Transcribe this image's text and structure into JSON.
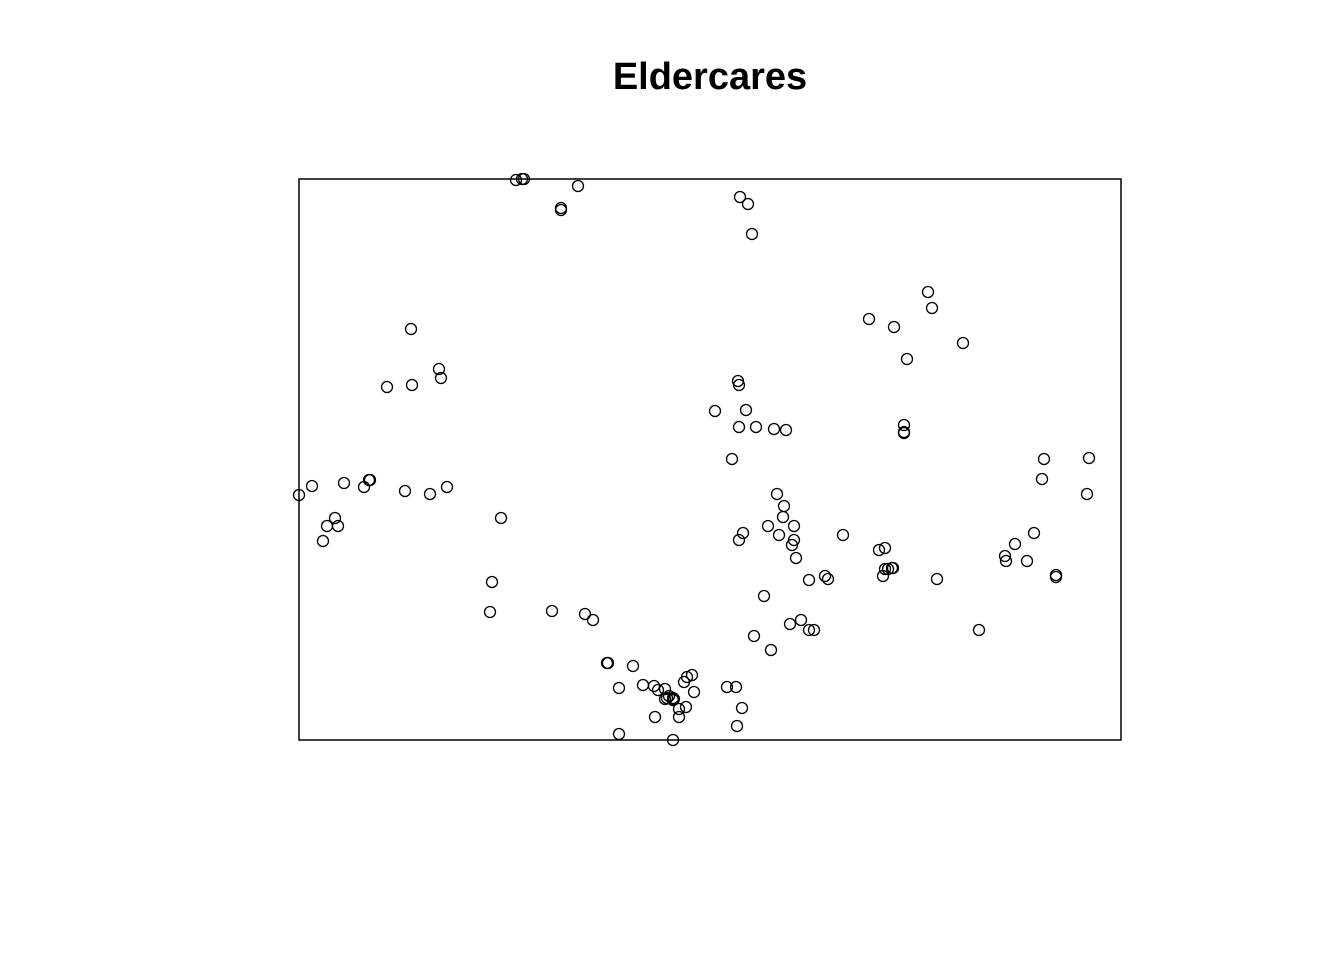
{
  "chart_data": {
    "type": "scatter",
    "title": "Eldercares",
    "xlabel": "",
    "ylabel": "",
    "xlim": [
      0,
      822
    ],
    "ylim": [
      0,
      561
    ],
    "axes_shown": false,
    "grid": false,
    "marker": "open-circle",
    "color": "#000000",
    "points": [
      [
        217,
        560
      ],
      [
        223,
        561
      ],
      [
        225,
        561
      ],
      [
        279,
        554
      ],
      [
        262,
        532
      ],
      [
        262,
        530
      ],
      [
        441,
        543
      ],
      [
        449,
        536
      ],
      [
        453,
        506
      ],
      [
        112,
        411
      ],
      [
        88,
        353
      ],
      [
        113,
        355
      ],
      [
        140,
        371
      ],
      [
        142,
        362
      ],
      [
        0,
        245
      ],
      [
        13,
        254
      ],
      [
        45,
        257
      ],
      [
        65,
        253
      ],
      [
        70,
        260
      ],
      [
        71,
        260
      ],
      [
        106,
        249
      ],
      [
        131,
        246
      ],
      [
        148,
        253
      ],
      [
        28,
        214
      ],
      [
        36,
        222
      ],
      [
        39,
        214
      ],
      [
        24,
        199
      ],
      [
        202,
        222
      ],
      [
        193,
        158
      ],
      [
        191,
        128
      ],
      [
        253,
        129
      ],
      [
        286,
        126
      ],
      [
        294,
        120
      ],
      [
        570,
        421
      ],
      [
        595,
        413
      ],
      [
        629,
        448
      ],
      [
        633,
        432
      ],
      [
        608,
        381
      ],
      [
        664,
        397
      ],
      [
        605,
        315
      ],
      [
        605,
        307
      ],
      [
        605,
        308
      ],
      [
        416,
        329
      ],
      [
        439,
        359
      ],
      [
        440,
        355
      ],
      [
        447,
        330
      ],
      [
        440,
        313
      ],
      [
        457,
        313
      ],
      [
        475,
        311
      ],
      [
        487,
        310
      ],
      [
        433,
        281
      ],
      [
        478,
        246
      ],
      [
        485,
        234
      ],
      [
        484,
        223
      ],
      [
        469,
        214
      ],
      [
        480,
        205
      ],
      [
        495,
        214
      ],
      [
        444,
        207
      ],
      [
        440,
        200
      ],
      [
        495,
        200
      ],
      [
        493,
        195
      ],
      [
        497,
        182
      ],
      [
        544,
        205
      ],
      [
        580,
        190
      ],
      [
        586,
        192
      ],
      [
        589,
        171
      ],
      [
        594,
        172
      ],
      [
        584,
        164
      ],
      [
        586,
        171
      ],
      [
        593,
        172
      ],
      [
        638,
        161
      ],
      [
        529,
        161
      ],
      [
        526,
        164
      ],
      [
        510,
        160
      ],
      [
        465,
        144
      ],
      [
        491,
        116
      ],
      [
        502,
        120
      ],
      [
        455,
        104
      ],
      [
        472,
        90
      ],
      [
        510,
        110
      ],
      [
        515,
        110
      ],
      [
        745,
        281
      ],
      [
        743,
        261
      ],
      [
        790,
        282
      ],
      [
        788,
        246
      ],
      [
        735,
        207
      ],
      [
        716,
        196
      ],
      [
        707,
        179
      ],
      [
        706,
        184
      ],
      [
        728,
        179
      ],
      [
        757,
        163
      ],
      [
        757,
        165
      ],
      [
        680,
        110
      ],
      [
        308,
        77
      ],
      [
        309,
        77
      ],
      [
        334,
        74
      ],
      [
        320,
        52
      ],
      [
        344,
        55
      ],
      [
        355,
        54
      ],
      [
        359,
        50
      ],
      [
        366,
        51
      ],
      [
        366,
        41
      ],
      [
        368,
        42
      ],
      [
        374,
        40
      ],
      [
        370,
        44
      ],
      [
        375,
        41
      ],
      [
        374,
        42
      ],
      [
        380,
        31
      ],
      [
        387,
        33
      ],
      [
        380,
        23
      ],
      [
        356,
        23
      ],
      [
        385,
        58
      ],
      [
        388,
        63
      ],
      [
        393,
        65
      ],
      [
        395,
        48
      ],
      [
        428,
        53
      ],
      [
        437,
        53
      ],
      [
        443,
        32
      ],
      [
        438,
        14
      ],
      [
        320,
        6
      ],
      [
        374,
        0
      ]
    ]
  }
}
